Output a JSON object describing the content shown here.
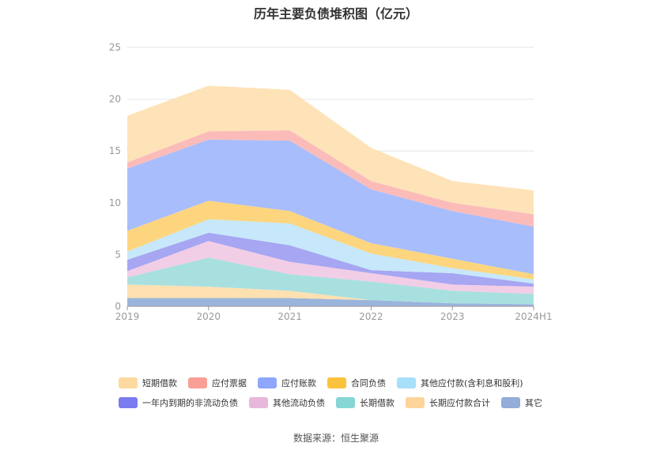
{
  "chart_data": {
    "type": "area",
    "title": "历年主要负债堆积图（亿元）",
    "categories": [
      "2019",
      "2020",
      "2021",
      "2022",
      "2023",
      "2024H1"
    ],
    "ylim": [
      0,
      25
    ],
    "yticks": [
      "0",
      "5",
      "10",
      "15",
      "20",
      "25"
    ],
    "stacked": true,
    "series": [
      {
        "name": "其它",
        "color": "#9bb4dc",
        "values": [
          0.8,
          0.8,
          0.8,
          0.6,
          0.3,
          0.2
        ]
      },
      {
        "name": "长期应付款合计",
        "color": "#ffe0b0",
        "values": [
          1.3,
          1.1,
          0.7,
          0.0,
          0.0,
          0.0
        ]
      },
      {
        "name": "长期借款",
        "color": "#a8e0e0",
        "values": [
          0.7,
          2.8,
          1.6,
          1.8,
          1.2,
          1.0
        ]
      },
      {
        "name": "其他流动负债",
        "color": "#f2cde6",
        "values": [
          0.6,
          1.6,
          1.2,
          0.8,
          0.6,
          0.7
        ]
      },
      {
        "name": "一年内到期的非流动负债",
        "color": "#a6a6f2",
        "values": [
          1.1,
          0.8,
          1.6,
          0.3,
          1.1,
          0.3
        ]
      },
      {
        "name": "其他应付款(含利息和股利)",
        "color": "#c6e8fa",
        "values": [
          0.8,
          1.3,
          2.1,
          1.6,
          0.5,
          0.4
        ]
      },
      {
        "name": "合同负债",
        "color": "#fdd57e",
        "values": [
          2.0,
          1.8,
          1.2,
          1.0,
          0.9,
          0.5
        ]
      },
      {
        "name": "应付账款",
        "color": "#a8bdfc",
        "values": [
          6.0,
          5.9,
          6.8,
          5.2,
          4.6,
          4.6
        ]
      },
      {
        "name": "应付票据",
        "color": "#fbbcb9",
        "values": [
          0.6,
          0.8,
          1.0,
          0.8,
          0.8,
          1.2
        ]
      },
      {
        "name": "短期借款",
        "color": "#fee3b8",
        "values": [
          4.5,
          4.4,
          3.9,
          3.2,
          2.1,
          2.3
        ]
      }
    ],
    "legend": [
      {
        "name": "短期借款",
        "color": "#fdd9a0"
      },
      {
        "name": "应付票据",
        "color": "#f99f96"
      },
      {
        "name": "应付账款",
        "color": "#8ea6fb"
      },
      {
        "name": "合同负债",
        "color": "#fbc23c"
      },
      {
        "name": "其他应付款(含利息和股利)",
        "color": "#a8dffa"
      },
      {
        "name": "一年内到期的非流动负债",
        "color": "#7b7bf0"
      },
      {
        "name": "其他流动负债",
        "color": "#e8b7dc"
      },
      {
        "name": "长期借款",
        "color": "#86d6d6"
      },
      {
        "name": "长期应付款合计",
        "color": "#fdd49a"
      },
      {
        "name": "其它",
        "color": "#93acd8"
      }
    ]
  },
  "source": "数据来源：恒生聚源"
}
